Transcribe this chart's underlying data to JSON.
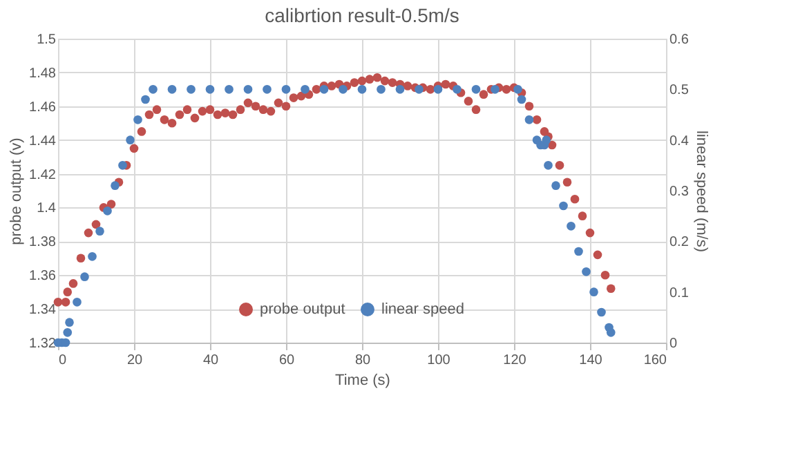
{
  "chart_data": {
    "type": "scatter",
    "title": "calibrtion result-0.5m/s",
    "xlabel": "Time (s)",
    "ylabel": "probe output (v)",
    "y2label": "linear speed  (m/s)",
    "xlim": [
      0,
      160
    ],
    "xticks": [
      0,
      20,
      40,
      60,
      80,
      100,
      120,
      140,
      160
    ],
    "ylim": [
      1.32,
      1.5
    ],
    "yticks": [
      1.32,
      1.34,
      1.36,
      1.38,
      1.4,
      1.42,
      1.44,
      1.46,
      1.48,
      1.5
    ],
    "y2lim": [
      0,
      0.6
    ],
    "y2ticks": [
      0,
      0.1,
      0.2,
      0.3,
      0.4,
      0.5,
      0.6
    ],
    "grid": true,
    "legend": "bottom",
    "marker": "circle",
    "series": [
      {
        "name": "probe output",
        "color": "#c0504d",
        "x": [
          0,
          2,
          2.5,
          4,
          6,
          8,
          10,
          12,
          14,
          16,
          18,
          20,
          22,
          24,
          26,
          28,
          30,
          32,
          34,
          36,
          38,
          40,
          42,
          44,
          46,
          48,
          50,
          52,
          54,
          56,
          58,
          60,
          62,
          64,
          66,
          68,
          70,
          72,
          74,
          76,
          78,
          80,
          82,
          84,
          86,
          88,
          90,
          92,
          94,
          96,
          98,
          100,
          102,
          104,
          106,
          108,
          110,
          112,
          114,
          116,
          118,
          120,
          122,
          124,
          126,
          128,
          129,
          130,
          132,
          134,
          136,
          138,
          140,
          142,
          144,
          145.5
        ],
        "values": [
          1.344,
          1.344,
          1.35,
          1.355,
          1.37,
          1.385,
          1.39,
          1.4,
          1.402,
          1.415,
          1.425,
          1.435,
          1.445,
          1.455,
          1.458,
          1.452,
          1.45,
          1.455,
          1.458,
          1.453,
          1.457,
          1.458,
          1.455,
          1.456,
          1.455,
          1.458,
          1.462,
          1.46,
          1.458,
          1.457,
          1.462,
          1.46,
          1.465,
          1.466,
          1.467,
          1.47,
          1.472,
          1.472,
          1.473,
          1.472,
          1.474,
          1.475,
          1.476,
          1.477,
          1.475,
          1.474,
          1.473,
          1.472,
          1.471,
          1.471,
          1.47,
          1.472,
          1.473,
          1.472,
          1.468,
          1.463,
          1.458,
          1.467,
          1.47,
          1.471,
          1.47,
          1.471,
          1.468,
          1.46,
          1.452,
          1.445,
          1.442,
          1.437,
          1.425,
          1.415,
          1.405,
          1.395,
          1.385,
          1.372,
          1.36,
          1.352
        ]
      },
      {
        "name": "linear speed",
        "color": "#4f81bd",
        "axis": "y2",
        "x": [
          0,
          1,
          2,
          2.5,
          3,
          5,
          7,
          9,
          11,
          13,
          15,
          17,
          19,
          21,
          23,
          25,
          30,
          35,
          40,
          45,
          50,
          55,
          60,
          65,
          70,
          75,
          80,
          85,
          90,
          95,
          100,
          105,
          110,
          115,
          121,
          122,
          124,
          126,
          127,
          128,
          128.5,
          129,
          131,
          133,
          135,
          137,
          139,
          141,
          143,
          145,
          145.5
        ],
        "values": [
          0,
          0,
          0,
          0.02,
          0.04,
          0.08,
          0.13,
          0.17,
          0.22,
          0.26,
          0.31,
          0.35,
          0.4,
          0.44,
          0.48,
          0.5,
          0.5,
          0.5,
          0.5,
          0.5,
          0.5,
          0.5,
          0.5,
          0.5,
          0.5,
          0.5,
          0.5,
          0.5,
          0.5,
          0.5,
          0.5,
          0.5,
          0.5,
          0.5,
          0.5,
          0.48,
          0.44,
          0.4,
          0.39,
          0.39,
          0.4,
          0.35,
          0.31,
          0.27,
          0.23,
          0.18,
          0.14,
          0.1,
          0.06,
          0.03,
          0.02
        ]
      }
    ]
  }
}
